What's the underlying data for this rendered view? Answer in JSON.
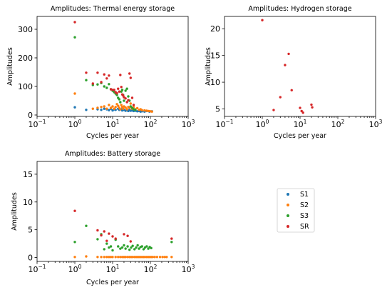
{
  "chart_data": [
    {
      "type": "scatter",
      "title": "Amplitudes: Thermal energy storage",
      "xlabel": "Cycles per year",
      "ylabel": "Amplitudes",
      "xscale": "log",
      "xlim": [
        0.1,
        1000
      ],
      "ylim": [
        -5,
        345
      ],
      "xticks": [
        {
          "base": "10",
          "exp": "−1",
          "v": 0.1
        },
        {
          "base": "10",
          "exp": "0",
          "v": 1
        },
        {
          "base": "10",
          "exp": "1",
          "v": 10
        },
        {
          "base": "10",
          "exp": "2",
          "v": 100
        },
        {
          "base": "10",
          "exp": "3",
          "v": 1000
        }
      ],
      "yticks": [
        "0",
        "100",
        "200",
        "300"
      ],
      "yticks_v": [
        0,
        100,
        200,
        300
      ],
      "series": [
        {
          "name": "S1",
          "color": "#1f77b4",
          "points": [
            [
              1,
              27
            ],
            [
              2,
              18
            ],
            [
              4,
              20
            ],
            [
              5,
              18
            ],
            [
              6,
              22
            ],
            [
              7,
              20
            ],
            [
              8,
              17
            ],
            [
              9,
              22
            ],
            [
              10,
              16
            ],
            [
              11,
              20
            ],
            [
              12,
              18
            ],
            [
              14,
              22
            ],
            [
              15,
              18
            ],
            [
              17,
              20
            ],
            [
              18,
              16
            ],
            [
              20,
              18
            ],
            [
              22,
              15
            ],
            [
              24,
              17
            ],
            [
              26,
              14
            ],
            [
              28,
              18
            ],
            [
              30,
              15
            ],
            [
              33,
              16
            ],
            [
              36,
              14
            ],
            [
              40,
              15
            ],
            [
              45,
              13
            ],
            [
              50,
              14
            ],
            [
              55,
              12
            ],
            [
              60,
              13
            ],
            [
              70,
              12
            ],
            [
              80,
              14
            ],
            [
              95,
              12
            ],
            [
              110,
              13
            ]
          ]
        },
        {
          "name": "S2",
          "color": "#ff7f0e",
          "points": [
            [
              1,
              75
            ],
            [
              3,
              22
            ],
            [
              4,
              25
            ],
            [
              5,
              28
            ],
            [
              6,
              30
            ],
            [
              7,
              22
            ],
            [
              8,
              35
            ],
            [
              9,
              25
            ],
            [
              10,
              30
            ],
            [
              11,
              22
            ],
            [
              12,
              28
            ],
            [
              13,
              38
            ],
            [
              14,
              32
            ],
            [
              15,
              25
            ],
            [
              16,
              20
            ],
            [
              17,
              35
            ],
            [
              18,
              28
            ],
            [
              19,
              22
            ],
            [
              20,
              30
            ],
            [
              22,
              26
            ],
            [
              24,
              20
            ],
            [
              26,
              28
            ],
            [
              28,
              25
            ],
            [
              30,
              40
            ],
            [
              33,
              22
            ],
            [
              36,
              28
            ],
            [
              40,
              20
            ],
            [
              45,
              24
            ],
            [
              50,
              18
            ],
            [
              55,
              20
            ],
            [
              60,
              17
            ],
            [
              70,
              16
            ],
            [
              80,
              15
            ],
            [
              90,
              14
            ],
            [
              100,
              13
            ],
            [
              110,
              12
            ]
          ]
        },
        {
          "name": "S3",
          "color": "#2ca02c",
          "points": [
            [
              1,
              272
            ],
            [
              2,
              122
            ],
            [
              3,
              105
            ],
            [
              4,
              107
            ],
            [
              5,
              112
            ],
            [
              6,
              100
            ],
            [
              7,
              95
            ],
            [
              8,
              108
            ],
            [
              9,
              90
            ],
            [
              10,
              85
            ],
            [
              11,
              80
            ],
            [
              12,
              75
            ],
            [
              13,
              70
            ],
            [
              14,
              60
            ],
            [
              15,
              55
            ],
            [
              16,
              45
            ],
            [
              17,
              82
            ],
            [
              18,
              88
            ],
            [
              19,
              70
            ],
            [
              20,
              50
            ],
            [
              22,
              85
            ],
            [
              24,
              92
            ],
            [
              26,
              65
            ],
            [
              28,
              50
            ],
            [
              30,
              30
            ],
            [
              33,
              25
            ],
            [
              36,
              20
            ],
            [
              40,
              18
            ]
          ]
        },
        {
          "name": "SR",
          "color": "#d62728",
          "points": [
            [
              1,
              325
            ],
            [
              2,
              148
            ],
            [
              3,
              110
            ],
            [
              4,
              148
            ],
            [
              5,
              115
            ],
            [
              6,
              142
            ],
            [
              7,
              128
            ],
            [
              8,
              138
            ],
            [
              9,
              90
            ],
            [
              10,
              88
            ],
            [
              11,
              88
            ],
            [
              12,
              80
            ],
            [
              13,
              76
            ],
            [
              14,
              92
            ],
            [
              15,
              82
            ],
            [
              16,
              140
            ],
            [
              17,
              98
            ],
            [
              18,
              72
            ],
            [
              19,
              68
            ],
            [
              20,
              62
            ],
            [
              22,
              58
            ],
            [
              24,
              45
            ],
            [
              26,
              52
            ],
            [
              28,
              145
            ],
            [
              30,
              130
            ],
            [
              33,
              60
            ],
            [
              36,
              35
            ]
          ]
        }
      ]
    },
    {
      "type": "scatter",
      "title": "Amplitudes: Hydrogen storage",
      "xlabel": "Cycles per year",
      "ylabel": "Amplitudes",
      "xscale": "log",
      "xlim": [
        0.1,
        1000
      ],
      "ylim": [
        3.6,
        22.3
      ],
      "xticks": [
        {
          "base": "10",
          "exp": "−1",
          "v": 0.1
        },
        {
          "base": "10",
          "exp": "0",
          "v": 1
        },
        {
          "base": "10",
          "exp": "1",
          "v": 10
        },
        {
          "base": "10",
          "exp": "2",
          "v": 100
        },
        {
          "base": "10",
          "exp": "3",
          "v": 1000
        }
      ],
      "yticks": [
        "5",
        "10",
        "15",
        "20"
      ],
      "yticks_v": [
        5,
        10,
        15,
        20
      ],
      "series": [
        {
          "name": "SR",
          "color": "#d62728",
          "points": [
            [
              1,
              21.6
            ],
            [
              2,
              4.8
            ],
            [
              3,
              7.2
            ],
            [
              4,
              13.2
            ],
            [
              5,
              15.3
            ],
            [
              6,
              8.5
            ],
            [
              10,
              5.2
            ],
            [
              11,
              4.6
            ],
            [
              12,
              4.3
            ],
            [
              20,
              5.8
            ],
            [
              21,
              5.3
            ]
          ]
        }
      ]
    },
    {
      "type": "scatter",
      "title": "Amplitudes: Battery storage",
      "xlabel": "Cycles per year",
      "ylabel": "Amplitudes",
      "xscale": "log",
      "xlim": [
        0.1,
        1000
      ],
      "ylim": [
        -0.7,
        17.3
      ],
      "xticks": [
        {
          "base": "10",
          "exp": "−1",
          "v": 0.1
        },
        {
          "base": "10",
          "exp": "0",
          "v": 1
        },
        {
          "base": "10",
          "exp": "1",
          "v": 10
        },
        {
          "base": "10",
          "exp": "2",
          "v": 100
        },
        {
          "base": "10",
          "exp": "3",
          "v": 1000
        }
      ],
      "yticks": [
        "0",
        "5",
        "10",
        "15"
      ],
      "yticks_v": [
        0,
        5,
        10,
        15
      ],
      "series": [
        {
          "name": "S1",
          "color": "#1f77b4",
          "points": []
        },
        {
          "name": "S2",
          "color": "#ff7f0e",
          "points": [
            [
              1,
              0.1
            ],
            [
              2,
              0.2
            ],
            [
              4,
              0.1
            ],
            [
              5,
              0.1
            ],
            [
              6,
              0.1
            ],
            [
              7,
              0.1
            ],
            [
              8,
              0.1
            ],
            [
              9,
              0.1
            ],
            [
              10,
              0.1
            ],
            [
              12,
              0.1
            ],
            [
              14,
              0.1
            ],
            [
              16,
              0.1
            ],
            [
              18,
              0.1
            ],
            [
              20,
              0.1
            ],
            [
              22,
              0.1
            ],
            [
              25,
              0.1
            ],
            [
              28,
              0.1
            ],
            [
              31,
              0.1
            ],
            [
              34,
              0.1
            ],
            [
              38,
              0.1
            ],
            [
              42,
              0.1
            ],
            [
              46,
              0.1
            ],
            [
              50,
              0.1
            ],
            [
              55,
              0.1
            ],
            [
              60,
              0.1
            ],
            [
              66,
              0.1
            ],
            [
              72,
              0.1
            ],
            [
              80,
              0.1
            ],
            [
              88,
              0.1
            ],
            [
              96,
              0.1
            ],
            [
              105,
              0.1
            ],
            [
              115,
              0.1
            ],
            [
              130,
              0.1
            ],
            [
              150,
              0.1
            ],
            [
              180,
              0.1
            ],
            [
              210,
              0.1
            ],
            [
              240,
              0.1
            ],
            [
              270,
              0.1
            ],
            [
              365,
              0.1
            ]
          ]
        },
        {
          "name": "S3",
          "color": "#2ca02c",
          "points": [
            [
              1,
              2.8
            ],
            [
              2,
              5.7
            ],
            [
              4,
              3.3
            ],
            [
              5,
              4.2
            ],
            [
              6,
              1.5
            ],
            [
              7,
              2.5
            ],
            [
              8,
              1.8
            ],
            [
              9,
              2.0
            ],
            [
              10,
              1.3
            ],
            [
              12,
              3.2
            ],
            [
              14,
              2.0
            ],
            [
              16,
              1.6
            ],
            [
              18,
              1.8
            ],
            [
              20,
              2.2
            ],
            [
              22,
              1.6
            ],
            [
              25,
              2.0
            ],
            [
              28,
              1.4
            ],
            [
              31,
              1.8
            ],
            [
              34,
              2.1
            ],
            [
              38,
              1.5
            ],
            [
              42,
              1.8
            ],
            [
              46,
              2.2
            ],
            [
              50,
              1.6
            ],
            [
              55,
              1.9
            ],
            [
              60,
              2.0
            ],
            [
              66,
              1.5
            ],
            [
              72,
              1.8
            ],
            [
              80,
              2.0
            ],
            [
              88,
              1.6
            ],
            [
              96,
              1.9
            ],
            [
              105,
              1.7
            ],
            [
              365,
              2.8
            ]
          ]
        },
        {
          "name": "SR",
          "color": "#d62728",
          "points": [
            [
              1,
              8.4
            ],
            [
              4,
              4.9
            ],
            [
              5,
              4.0
            ],
            [
              6,
              4.7
            ],
            [
              7,
              3.0
            ],
            [
              8,
              4.3
            ],
            [
              10,
              3.8
            ],
            [
              12,
              3.4
            ],
            [
              20,
              4.2
            ],
            [
              25,
              3.9
            ],
            [
              30,
              2.9
            ],
            [
              365,
              3.4
            ]
          ]
        }
      ]
    }
  ],
  "legend": {
    "placement": "bottom-right",
    "entries": [
      {
        "name": "S1",
        "color": "#1f77b4"
      },
      {
        "name": "S2",
        "color": "#ff7f0e"
      },
      {
        "name": "S3",
        "color": "#2ca02c"
      },
      {
        "name": "SR",
        "color": "#d62728"
      }
    ]
  }
}
